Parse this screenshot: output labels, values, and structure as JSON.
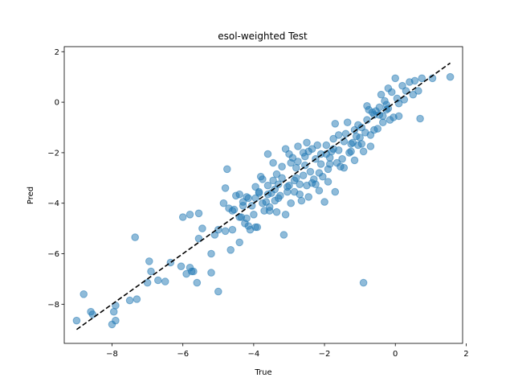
{
  "chart_data": {
    "type": "scatter",
    "title": "esol-weighted Test",
    "xlabel": "True",
    "ylabel": "Pred",
    "xlim": [
      -9.35,
      1.9
    ],
    "ylim": [
      -9.55,
      2.2
    ],
    "xticks": [
      -8,
      -6,
      -4,
      -2,
      0,
      2
    ],
    "yticks": [
      -8,
      -6,
      -4,
      -2,
      0,
      2
    ],
    "grid": false,
    "colors": {
      "points": "#1f77b4",
      "reference_line": "#000000"
    },
    "reference_line": {
      "x": [
        -9.0,
        1.55
      ],
      "y": [
        -9.0,
        1.55
      ],
      "style": "dashed"
    },
    "points": [
      [
        -9.0,
        -8.65
      ],
      [
        -8.8,
        -7.6
      ],
      [
        -8.6,
        -8.3
      ],
      [
        -8.55,
        -8.4
      ],
      [
        -8.0,
        -8.8
      ],
      [
        -7.95,
        -8.3
      ],
      [
        -7.9,
        -8.05
      ],
      [
        -7.9,
        -8.65
      ],
      [
        -7.5,
        -7.85
      ],
      [
        -7.3,
        -7.8
      ],
      [
        -7.35,
        -5.35
      ],
      [
        -7.0,
        -7.15
      ],
      [
        -6.9,
        -6.7
      ],
      [
        -6.95,
        -6.3
      ],
      [
        -6.7,
        -7.05
      ],
      [
        -6.5,
        -7.1
      ],
      [
        -6.35,
        -6.35
      ],
      [
        -6.05,
        -6.5
      ],
      [
        -5.9,
        -6.8
      ],
      [
        -5.8,
        -6.55
      ],
      [
        -5.75,
        -6.7
      ],
      [
        -5.7,
        -6.7
      ],
      [
        -5.6,
        -7.15
      ],
      [
        -5.55,
        -5.4
      ],
      [
        -5.45,
        -5.0
      ],
      [
        -5.2,
        -6.0
      ],
      [
        -5.1,
        -5.25
      ],
      [
        -5.0,
        -7.5
      ],
      [
        -6.0,
        -4.55
      ],
      [
        -5.8,
        -4.45
      ],
      [
        -5.55,
        -4.4
      ],
      [
        -5.2,
        -6.75
      ],
      [
        -4.8,
        -3.4
      ],
      [
        -4.75,
        -2.65
      ],
      [
        -4.7,
        -4.2
      ],
      [
        -4.6,
        -4.3
      ],
      [
        -4.5,
        -3.7
      ],
      [
        -4.4,
        -3.65
      ],
      [
        -4.4,
        -4.55
      ],
      [
        -4.3,
        -4.1
      ],
      [
        -4.2,
        -4.6
      ],
      [
        -4.15,
        -4.9
      ],
      [
        -4.0,
        -4.45
      ],
      [
        -3.95,
        -3.8
      ],
      [
        -3.9,
        -4.95
      ],
      [
        -3.85,
        -3.55
      ],
      [
        -3.8,
        -2.95
      ],
      [
        -3.75,
        -4.0
      ],
      [
        -3.7,
        -4.3
      ],
      [
        -3.6,
        -2.05
      ],
      [
        -3.55,
        -4.15
      ],
      [
        -3.5,
        -3.6
      ],
      [
        -3.45,
        -3.1
      ],
      [
        -3.4,
        -3.45
      ],
      [
        -3.35,
        -2.85
      ],
      [
        -3.3,
        -3.8
      ],
      [
        -3.2,
        -3.0
      ],
      [
        -3.15,
        -5.25
      ],
      [
        -3.1,
        -1.85
      ],
      [
        -3.05,
        -3.55
      ],
      [
        -3.0,
        -3.3
      ],
      [
        -2.95,
        -2.4
      ],
      [
        -2.9,
        -2.2
      ],
      [
        -2.85,
        -3.1
      ],
      [
        -2.8,
        -2.6
      ],
      [
        -2.75,
        -1.75
      ],
      [
        -2.7,
        -3.25
      ],
      [
        -2.65,
        -3.9
      ],
      [
        -2.6,
        -2.9
      ],
      [
        -2.55,
        -2.5
      ],
      [
        -2.5,
        -1.6
      ],
      [
        -2.45,
        -1.95
      ],
      [
        -2.4,
        -2.75
      ],
      [
        -2.35,
        -3.2
      ],
      [
        -2.3,
        -3.05
      ],
      [
        -2.25,
        -2.25
      ],
      [
        -2.2,
        -1.7
      ],
      [
        -2.15,
        -3.5
      ],
      [
        -2.1,
        -2.05
      ],
      [
        -2.05,
        -2.95
      ],
      [
        -2.0,
        -3.95
      ],
      [
        -1.95,
        -1.7
      ],
      [
        -1.9,
        -2.65
      ],
      [
        -1.85,
        -2.2
      ],
      [
        -1.8,
        -1.95
      ],
      [
        -1.75,
        -1.45
      ],
      [
        -1.7,
        -0.85
      ],
      [
        -1.65,
        -2.4
      ],
      [
        -1.6,
        -1.9
      ],
      [
        -1.5,
        -2.25
      ],
      [
        -1.45,
        -2.6
      ],
      [
        -1.4,
        -1.25
      ],
      [
        -1.35,
        -0.8
      ],
      [
        -1.3,
        -2.0
      ],
      [
        -1.25,
        -1.65
      ],
      [
        -1.2,
        -1.6
      ],
      [
        -1.15,
        -2.3
      ],
      [
        -1.1,
        -1.35
      ],
      [
        -1.05,
        -0.9
      ],
      [
        -1.0,
        -1.4
      ],
      [
        -0.95,
        -1.0
      ],
      [
        -0.9,
        -1.95
      ],
      [
        -0.9,
        -7.15
      ],
      [
        -0.85,
        -1.2
      ],
      [
        -0.8,
        -0.7
      ],
      [
        -0.75,
        -0.3
      ],
      [
        -0.7,
        -1.3
      ],
      [
        -0.65,
        -0.4
      ],
      [
        -0.6,
        -0.5
      ],
      [
        -0.55,
        -0.35
      ],
      [
        -0.5,
        -1.05
      ],
      [
        -0.45,
        -0.2
      ],
      [
        -0.4,
        0.3
      ],
      [
        -0.35,
        -0.55
      ],
      [
        -0.3,
        0.05
      ],
      [
        -0.25,
        -0.1
      ],
      [
        -0.2,
        0.55
      ],
      [
        -0.15,
        -0.7
      ],
      [
        -0.1,
        0.4
      ],
      [
        -0.05,
        -0.6
      ],
      [
        0.0,
        0.95
      ],
      [
        0.05,
        0.15
      ],
      [
        0.1,
        -0.05
      ],
      [
        0.2,
        0.65
      ],
      [
        0.25,
        0.1
      ],
      [
        0.3,
        0.45
      ],
      [
        0.4,
        0.8
      ],
      [
        0.5,
        0.3
      ],
      [
        0.55,
        0.85
      ],
      [
        0.65,
        0.45
      ],
      [
        0.7,
        -0.65
      ],
      [
        0.75,
        0.95
      ],
      [
        1.05,
        0.95
      ],
      [
        1.55,
        1.0
      ],
      [
        -1.6,
        -1.3
      ],
      [
        -0.7,
        -1.75
      ],
      [
        -2.6,
        -2.0
      ],
      [
        -3.6,
        -3.65
      ],
      [
        -4.2,
        -3.75
      ],
      [
        -4.25,
        -4.8
      ],
      [
        -4.6,
        -5.05
      ],
      [
        -4.65,
        -5.85
      ],
      [
        -4.4,
        -5.55
      ],
      [
        -4.1,
        -5.05
      ],
      [
        -3.95,
        -4.95
      ],
      [
        -3.55,
        -4.3
      ],
      [
        -3.35,
        -4.35
      ],
      [
        -3.1,
        -4.45
      ],
      [
        -2.95,
        -4.0
      ],
      [
        -2.7,
        -3.65
      ],
      [
        -2.45,
        -3.75
      ],
      [
        -2.25,
        -3.25
      ],
      [
        -1.9,
        -3.15
      ],
      [
        -1.7,
        -3.55
      ],
      [
        -3.95,
        -3.35
      ],
      [
        -3.75,
        -3.05
      ],
      [
        -3.3,
        -3.25
      ],
      [
        -2.85,
        -3.55
      ],
      [
        -2.5,
        -3.3
      ],
      [
        -2.15,
        -2.8
      ],
      [
        -1.85,
        -2.45
      ],
      [
        -1.55,
        -2.55
      ],
      [
        -1.25,
        -1.95
      ],
      [
        -0.95,
        -1.65
      ],
      [
        -0.6,
        -1.1
      ],
      [
        -0.35,
        -0.8
      ],
      [
        -0.25,
        -0.3
      ],
      [
        0.1,
        -0.55
      ],
      [
        -4.85,
        -4.0
      ],
      [
        -4.55,
        -4.25
      ],
      [
        -4.35,
        -4.55
      ],
      [
        -4.05,
        -4.1
      ],
      [
        -3.65,
        -3.95
      ],
      [
        -3.45,
        -2.4
      ],
      [
        -3.2,
        -2.55
      ],
      [
        -3.0,
        -2.05
      ],
      [
        -2.75,
        -2.35
      ],
      [
        -2.55,
        -2.15
      ],
      [
        -2.35,
        -1.85
      ],
      [
        -2.1,
        -2.45
      ],
      [
        -1.95,
        -2.05
      ],
      [
        -1.75,
        -1.85
      ],
      [
        -1.45,
        -1.55
      ],
      [
        -1.15,
        -1.1
      ],
      [
        -1.05,
        -1.7
      ],
      [
        -0.8,
        -0.15
      ],
      [
        -0.45,
        -0.5
      ],
      [
        -0.2,
        -0.25
      ],
      [
        -5.0,
        -5.05
      ],
      [
        -4.8,
        -5.1
      ],
      [
        -4.3,
        -3.95
      ],
      [
        -4.15,
        -3.8
      ],
      [
        -3.85,
        -3.6
      ],
      [
        -3.6,
        -3.3
      ],
      [
        -3.4,
        -3.9
      ],
      [
        -3.25,
        -3.7
      ],
      [
        -3.05,
        -3.35
      ],
      [
        -2.8,
        -3.0
      ]
    ]
  }
}
